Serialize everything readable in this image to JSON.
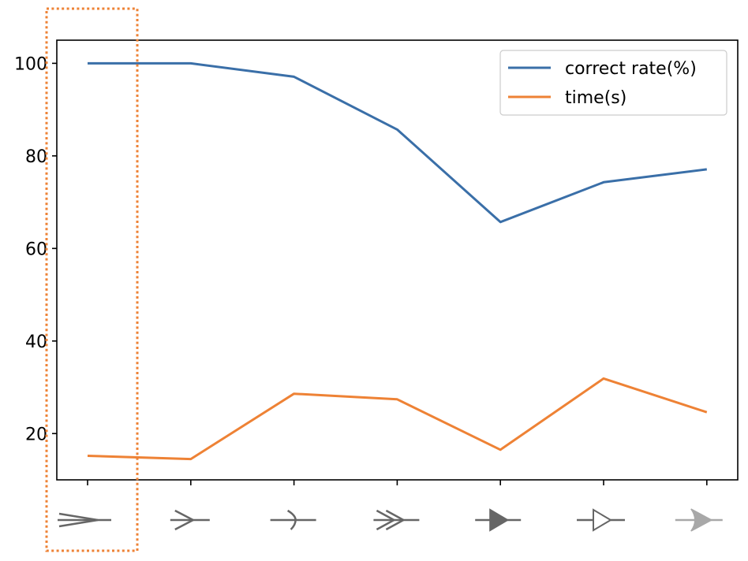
{
  "chart_data": {
    "type": "line",
    "x": [
      0,
      1,
      2,
      3,
      4,
      5,
      6
    ],
    "category_icons": [
      "open-arrow-with-tail-icon",
      "open-arrow-icon",
      "curved-tick-arrow-icon",
      "double-chevron-arrow-icon",
      "filled-triangle-arrow-icon",
      "hollow-triangle-arrow-icon",
      "swept-arrow-icon"
    ],
    "series": [
      {
        "name": "correct rate(%)",
        "color": "#3a6fa8",
        "values": [
          100,
          100,
          97.1,
          85.7,
          65.7,
          74.3,
          77.1
        ]
      },
      {
        "name": "time(s)",
        "color": "#ee8235",
        "values": [
          15.2,
          14.5,
          28.6,
          27.4,
          16.5,
          31.9,
          24.6
        ]
      }
    ],
    "ylim": [
      10,
      105
    ],
    "yticks": [
      20,
      40,
      60,
      80,
      100
    ],
    "legend_position": "top-right",
    "grid": false,
    "highlight": {
      "category_index": 0,
      "style": "dotted-box",
      "color": "#ee8235"
    },
    "icon_colors": {
      "dark": "#666666",
      "light": "#a8a8a8"
    }
  }
}
